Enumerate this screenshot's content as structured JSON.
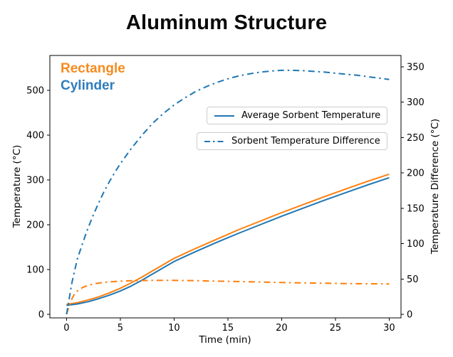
{
  "title": "Aluminum Structure",
  "annotations": {
    "rectangle_label": "Rectangle",
    "cylinder_label": "Cylinder"
  },
  "legend": [
    {
      "label": "Average Sorbent Temperature",
      "style": "solid"
    },
    {
      "label": "Sorbent Temperature Difference",
      "style": "dashdot"
    }
  ],
  "colors": {
    "orange": "#ff7f0e",
    "blue": "#1f77b4",
    "rectangle_label_text": "#f68b1f",
    "cylinder_label_text": "#2e7ebd",
    "axis": "#000000",
    "legend_border": "#cccccc"
  },
  "chart_data": {
    "type": "line",
    "title": "Aluminum Structure",
    "xlabel": "Time (min)",
    "ylabel_left": "Temperature (°C)",
    "ylabel_right": "Temperature Difference (°C)",
    "grid": false,
    "xlim": [
      -1.55,
      31.1
    ],
    "ylim_left": [
      -8,
      578
    ],
    "ylim_right": [
      -5,
      366
    ],
    "xticks": [
      0,
      5,
      10,
      15,
      20,
      25,
      30
    ],
    "yticks_left": [
      0,
      100,
      200,
      300,
      400,
      500
    ],
    "yticks_right": [
      0,
      50,
      100,
      150,
      200,
      250,
      300,
      350
    ],
    "series": [
      {
        "name": "rectangle-average-sorbent-temperature",
        "axis": "left",
        "style": "solid",
        "color": "#ff7f0e",
        "x": [
          0,
          1,
          2,
          3,
          4,
          5,
          6,
          7,
          8,
          9,
          10,
          12,
          14,
          16,
          18,
          20,
          22,
          24,
          26,
          28,
          30
        ],
        "y": [
          22,
          26,
          32,
          39,
          48,
          58,
          70,
          83,
          97,
          111,
          125,
          147,
          168,
          189,
          208,
          227,
          245,
          263,
          280,
          297,
          313
        ]
      },
      {
        "name": "cylinder-average-sorbent-temperature",
        "axis": "left",
        "style": "solid",
        "color": "#1f77b4",
        "x": [
          0,
          1,
          2,
          3,
          4,
          5,
          6,
          7,
          8,
          9,
          10,
          12,
          14,
          16,
          18,
          20,
          22,
          24,
          26,
          28,
          30
        ],
        "y": [
          20,
          23,
          28,
          35,
          43,
          52,
          63,
          76,
          90,
          104,
          118,
          140,
          161,
          181,
          200,
          219,
          237,
          255,
          272,
          289,
          305
        ]
      },
      {
        "name": "rectangle-sorbent-temperature-difference",
        "axis": "right",
        "style": "dashdot",
        "color": "#ff7f0e",
        "x": [
          0,
          0.25,
          0.5,
          0.75,
          1,
          1.5,
          2,
          2.5,
          3,
          4,
          5,
          6,
          7,
          8,
          10,
          12,
          14,
          16,
          18,
          20,
          22,
          24,
          26,
          28,
          30
        ],
        "y": [
          0,
          12,
          22,
          29,
          33,
          38,
          41,
          43,
          44.3,
          46,
          47,
          47.5,
          47.8,
          48,
          48,
          47.6,
          47,
          46.4,
          45.7,
          45,
          44.5,
          44,
          43.6,
          43.3,
          43
        ]
      },
      {
        "name": "cylinder-sorbent-temperature-difference",
        "axis": "right",
        "style": "dashdot",
        "color": "#1f77b4",
        "x": [
          0,
          0.5,
          1,
          1.5,
          2,
          2.5,
          3,
          3.5,
          4,
          4.5,
          5,
          6,
          7,
          8,
          9,
          10,
          11,
          12,
          13,
          14,
          15,
          16,
          17,
          18,
          19,
          20,
          21,
          22,
          23,
          24,
          25,
          26,
          27,
          28,
          29,
          30
        ],
        "y": [
          0,
          45,
          78,
          101,
          122,
          141,
          158,
          174,
          188,
          201,
          213,
          234,
          253,
          270,
          284,
          296,
          306,
          315,
          322,
          328,
          333,
          337,
          340,
          342.5,
          344,
          345,
          345,
          344.5,
          343.5,
          342.5,
          341,
          339.5,
          338,
          336,
          334,
          332
        ]
      }
    ],
    "legend_entries": [
      "Average Sorbent Temperature",
      "Sorbent Temperature Difference"
    ],
    "legend_position": "center-right, two stacked boxes"
  }
}
